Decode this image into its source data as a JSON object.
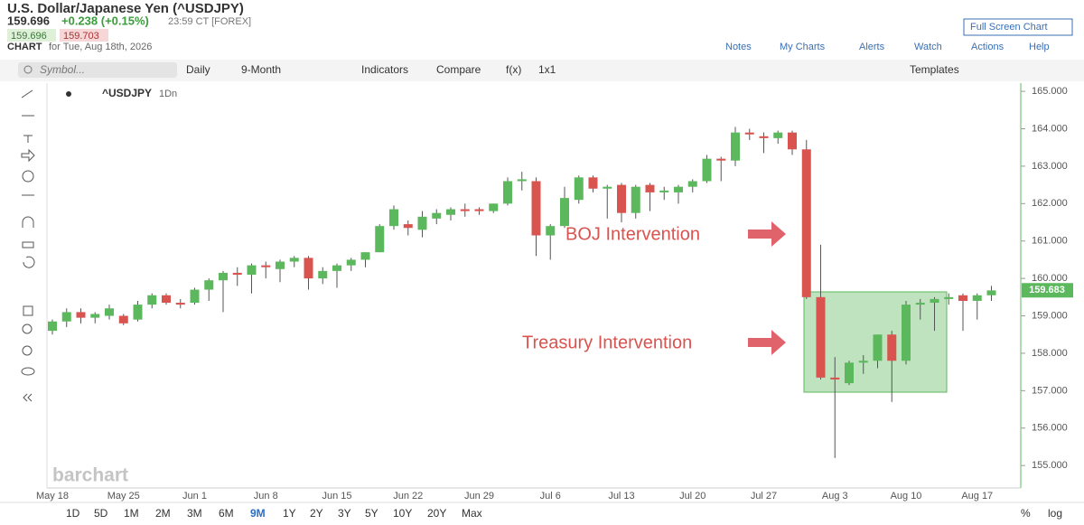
{
  "header": {
    "title": "U.S. Dollar/Japanese Yen (^USDJPY)",
    "price": "159.696",
    "change": "+0.238 (+0.15%)",
    "time": "23:59 CT [FOREX]",
    "bid": "159.696",
    "ask": "159.703",
    "chart_label": "CHART",
    "chart_date": "for Tue, Aug 18th, 2026",
    "full_screen": "Full Screen Chart",
    "links": [
      "Notes",
      "My Charts",
      "Alerts",
      "Watch",
      "Actions",
      "Help"
    ]
  },
  "toolbar": {
    "symbol_placeholder": "Symbol...",
    "items": [
      "Daily",
      "9-Month",
      "Indicators",
      "Compare",
      "f(x)",
      "1x1"
    ],
    "templates": "Templates"
  },
  "periods": [
    "1D",
    "5D",
    "1M",
    "2M",
    "3M",
    "6M",
    "9M",
    "1Y",
    "2Y",
    "3Y",
    "5Y",
    "10Y",
    "20Y",
    "Max"
  ],
  "selected_period": "9M",
  "scale_options": [
    "%",
    "log"
  ],
  "watermark": "barchart",
  "chart_data": {
    "type": "candlestick",
    "interval": "1Dn",
    "categories": [
      "May 18",
      null,
      null,
      null,
      null,
      "May 25",
      null,
      null,
      null,
      null,
      "Jun 1",
      null,
      null,
      null,
      null,
      "Jun 8",
      null,
      null,
      null,
      null,
      "Jun 15",
      null,
      null,
      null,
      null,
      "Jun 22",
      null,
      null,
      null,
      null,
      "Jun 29",
      null,
      null,
      null,
      null,
      "Jul 6",
      null,
      null,
      null,
      null,
      "Jul 13",
      null,
      null,
      null,
      null,
      "Jul 20",
      null,
      null,
      null,
      null,
      "Jul 27",
      null,
      null,
      null,
      null,
      "Aug 3",
      null,
      null,
      null,
      null,
      "Aug 10",
      null,
      null,
      null,
      null,
      "Aug 17",
      null
    ],
    "series": [
      {
        "name": "^USDJPY",
        "up_color": "#5cb85c",
        "down_color": "#d9534f",
        "open": [
          158.6,
          158.85,
          159.1,
          158.95,
          159.0,
          159.0,
          158.9,
          159.3,
          159.55,
          159.35,
          159.35,
          159.7,
          159.95,
          160.15,
          160.1,
          160.35,
          160.25,
          160.45,
          160.55,
          160.0,
          160.2,
          160.35,
          160.5,
          160.7,
          161.4,
          161.45,
          161.3,
          161.6,
          161.7,
          161.85,
          161.85,
          161.8,
          162.0,
          162.6,
          162.6,
          161.15,
          161.4,
          162.1,
          162.7,
          162.4,
          162.5,
          161.75,
          162.5,
          162.3,
          162.3,
          162.45,
          162.6,
          163.2,
          163.15,
          163.9,
          163.8,
          163.75,
          163.9,
          163.45,
          159.5,
          157.35,
          157.2,
          157.75,
          157.8,
          158.5,
          157.8,
          159.3,
          159.35,
          159.45,
          159.55,
          159.4,
          159.55
        ],
        "high": [
          158.9,
          159.2,
          159.2,
          159.1,
          159.3,
          159.05,
          159.4,
          159.6,
          159.6,
          159.45,
          159.75,
          160.0,
          160.2,
          160.3,
          160.4,
          160.45,
          160.5,
          160.6,
          160.6,
          160.3,
          160.4,
          160.55,
          160.7,
          161.45,
          161.95,
          161.55,
          161.8,
          161.85,
          161.9,
          162.0,
          161.9,
          162.0,
          162.7,
          162.85,
          162.7,
          161.45,
          162.45,
          162.75,
          162.75,
          162.5,
          162.55,
          162.5,
          162.55,
          162.45,
          162.5,
          162.65,
          163.3,
          163.25,
          164.05,
          164.0,
          163.9,
          163.95,
          163.95,
          163.7,
          160.9,
          157.9,
          157.8,
          157.95,
          158.5,
          158.6,
          159.4,
          159.45,
          159.5,
          159.6,
          159.6,
          159.6,
          159.8
        ],
        "low": [
          158.5,
          158.7,
          158.8,
          158.8,
          158.9,
          158.75,
          158.85,
          159.2,
          159.3,
          159.2,
          159.3,
          159.4,
          159.1,
          159.8,
          159.6,
          160.0,
          159.9,
          160.3,
          159.7,
          159.85,
          159.75,
          160.2,
          160.3,
          160.7,
          161.3,
          161.15,
          161.1,
          161.45,
          161.55,
          161.65,
          161.7,
          161.75,
          161.95,
          162.35,
          160.6,
          160.5,
          161.35,
          162.0,
          162.3,
          161.6,
          161.5,
          161.6,
          161.8,
          162.1,
          162.0,
          162.3,
          162.55,
          162.6,
          163.0,
          163.7,
          163.35,
          163.6,
          163.3,
          159.45,
          157.3,
          155.2,
          157.15,
          157.45,
          157.6,
          156.7,
          157.7,
          158.9,
          158.6,
          159.3,
          158.6,
          158.9,
          159.4
        ],
        "close": [
          158.85,
          159.1,
          158.95,
          159.05,
          159.2,
          158.8,
          159.3,
          159.55,
          159.35,
          159.3,
          159.7,
          159.95,
          160.15,
          160.1,
          160.35,
          160.3,
          160.45,
          160.55,
          160.0,
          160.2,
          160.35,
          160.5,
          160.7,
          161.4,
          161.85,
          161.35,
          161.65,
          161.75,
          161.85,
          161.8,
          161.8,
          162.0,
          162.6,
          162.65,
          161.15,
          161.4,
          162.15,
          162.7,
          162.4,
          162.45,
          161.75,
          162.45,
          162.3,
          162.35,
          162.45,
          162.6,
          163.2,
          163.15,
          163.9,
          163.85,
          163.75,
          163.9,
          163.45,
          159.5,
          157.35,
          157.3,
          157.75,
          157.8,
          158.5,
          157.8,
          159.3,
          159.35,
          159.45,
          159.5,
          159.4,
          159.55,
          159.68
        ]
      }
    ],
    "ylim": [
      154.4,
      165.22
    ],
    "yticks": [
      {
        "value": 155,
        "label": "155.000"
      },
      {
        "value": 156,
        "label": "156.000"
      },
      {
        "value": 157,
        "label": "157.000"
      },
      {
        "value": 158,
        "label": "158.000"
      },
      {
        "value": 159,
        "label": "159.000"
      },
      {
        "value": 160,
        "label": "160.000"
      },
      {
        "value": 161,
        "label": "161.000"
      },
      {
        "value": 162,
        "label": "162.000"
      },
      {
        "value": 163,
        "label": "163.000"
      },
      {
        "value": 164,
        "label": "164.000"
      },
      {
        "value": 165,
        "label": "165.000"
      }
    ],
    "last_price": 159.683,
    "annotations": [
      {
        "text": "BOJ Intervention"
      },
      {
        "text": "Treasury Intervention"
      }
    ]
  }
}
